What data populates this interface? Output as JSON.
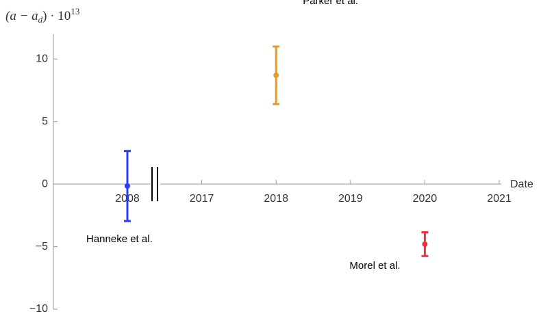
{
  "chart_data": {
    "type": "errorbar",
    "ylabel_parts": [
      "(a − a",
      "d",
      ") · 10",
      "13"
    ],
    "xlabel": "Date",
    "xticks": [
      "2008",
      "2017",
      "2018",
      "2019",
      "2020",
      "2021"
    ],
    "ylim": [
      -10,
      11.7
    ],
    "yticks": [
      {
        "value": -10,
        "label": "−10"
      },
      {
        "value": -5,
        "label": "−5"
      },
      0,
      5,
      10
    ],
    "series": [
      {
        "name": "Hanneke et al.",
        "color": "#2b3cf2",
        "x": "2008",
        "value": -0.15,
        "error": 2.8
      },
      {
        "name": "Parker et al.",
        "color": "#e09c36",
        "x": "2018",
        "value": 8.7,
        "error": 2.3
      },
      {
        "name": "Morel et al.",
        "color": "#f2303c",
        "x": "2020",
        "value": -4.8,
        "error": 0.95
      }
    ]
  }
}
